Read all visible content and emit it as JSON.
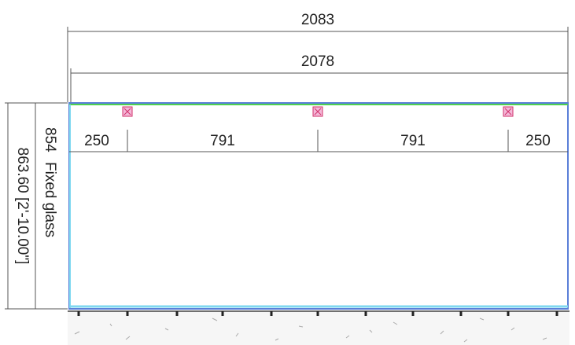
{
  "dimensions": {
    "overall_width": "2083",
    "frame_width": "2078",
    "segments": [
      "250",
      "791",
      "791",
      "250"
    ],
    "overall_height": "863.60 [2'-10.00\"]",
    "glass_height": "854"
  },
  "panel": {
    "label": "Fixed glass"
  }
}
